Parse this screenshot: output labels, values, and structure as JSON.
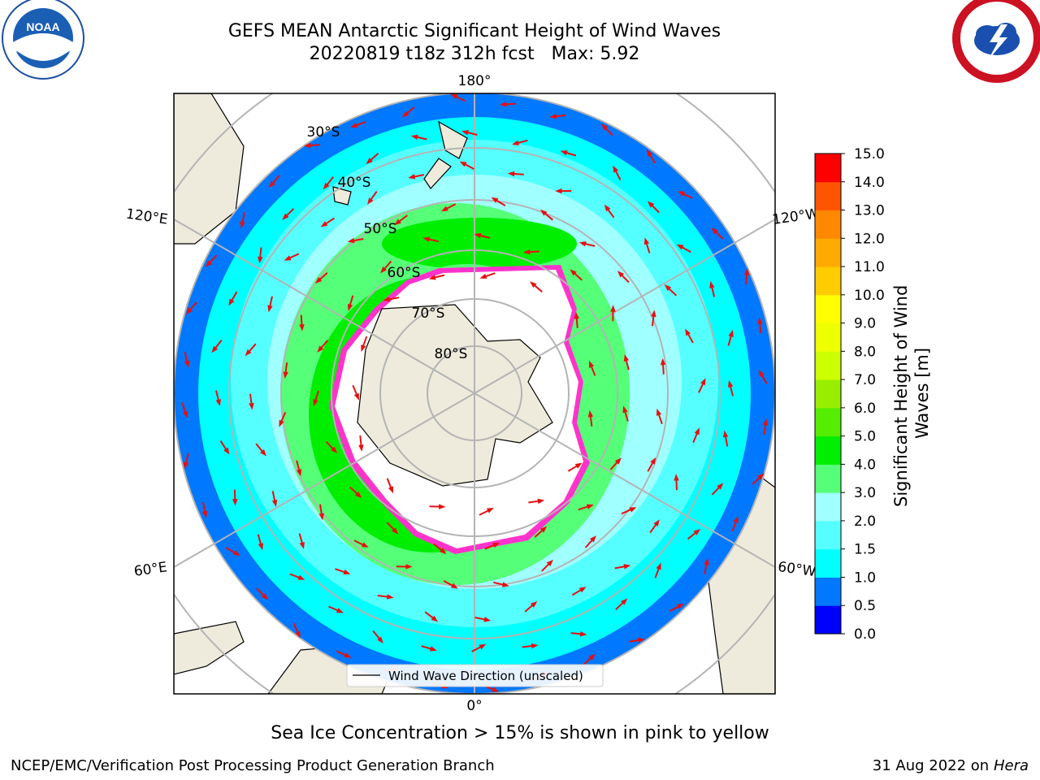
{
  "header": {
    "title": "GEFS MEAN Antarctic Significant Height of Wind Waves",
    "subtitle": "20220819 t18z 312h fcst   Max: 5.92"
  },
  "logos": {
    "left": "NOAA",
    "right": "NATIONAL WEATHER SERVICE"
  },
  "map": {
    "lon_labels": {
      "top": "180°",
      "bottom": "0°",
      "upper_left": "120°E",
      "upper_right": "120°W",
      "lower_left": "60°E",
      "lower_right": "60°W"
    },
    "lat_labels": [
      "30°S",
      "40°S",
      "50°S",
      "60°S",
      "70°S",
      "80°S"
    ],
    "legend": "Wind Wave Direction (unscaled)",
    "colors": {
      "land": "#eeebdc",
      "grid": "#b4b4b4",
      "arrow": "#e51010",
      "ice_edge": "#ff33cc"
    }
  },
  "colorbar": {
    "label_line1": "Significant Height of Wind",
    "label_line2": "Waves [m]",
    "ticks": [
      "0.0",
      "0.5",
      "1.0",
      "1.5",
      "2.0",
      "3.0",
      "4.0",
      "5.0",
      "6.0",
      "7.0",
      "8.0",
      "9.0",
      "10.0",
      "11.0",
      "12.0",
      "13.0",
      "14.0",
      "15.0"
    ],
    "colors": [
      "#0000ff",
      "#0078ff",
      "#00ffff",
      "#55ffff",
      "#a0ffff",
      "#55ff77",
      "#00ee00",
      "#55ee00",
      "#99ee00",
      "#ccff00",
      "#eeff00",
      "#ffff00",
      "#ffcc00",
      "#ffaa00",
      "#ff8800",
      "#ff5500",
      "#ff0000"
    ]
  },
  "caption": "Sea Ice Concentration > 15% is shown in pink to yellow",
  "footer": {
    "left": "NCEP/EMC/Verification Post Processing Product Generation Branch",
    "right_date": "31 Aug 2022 on",
    "right_host": "Hera"
  }
}
